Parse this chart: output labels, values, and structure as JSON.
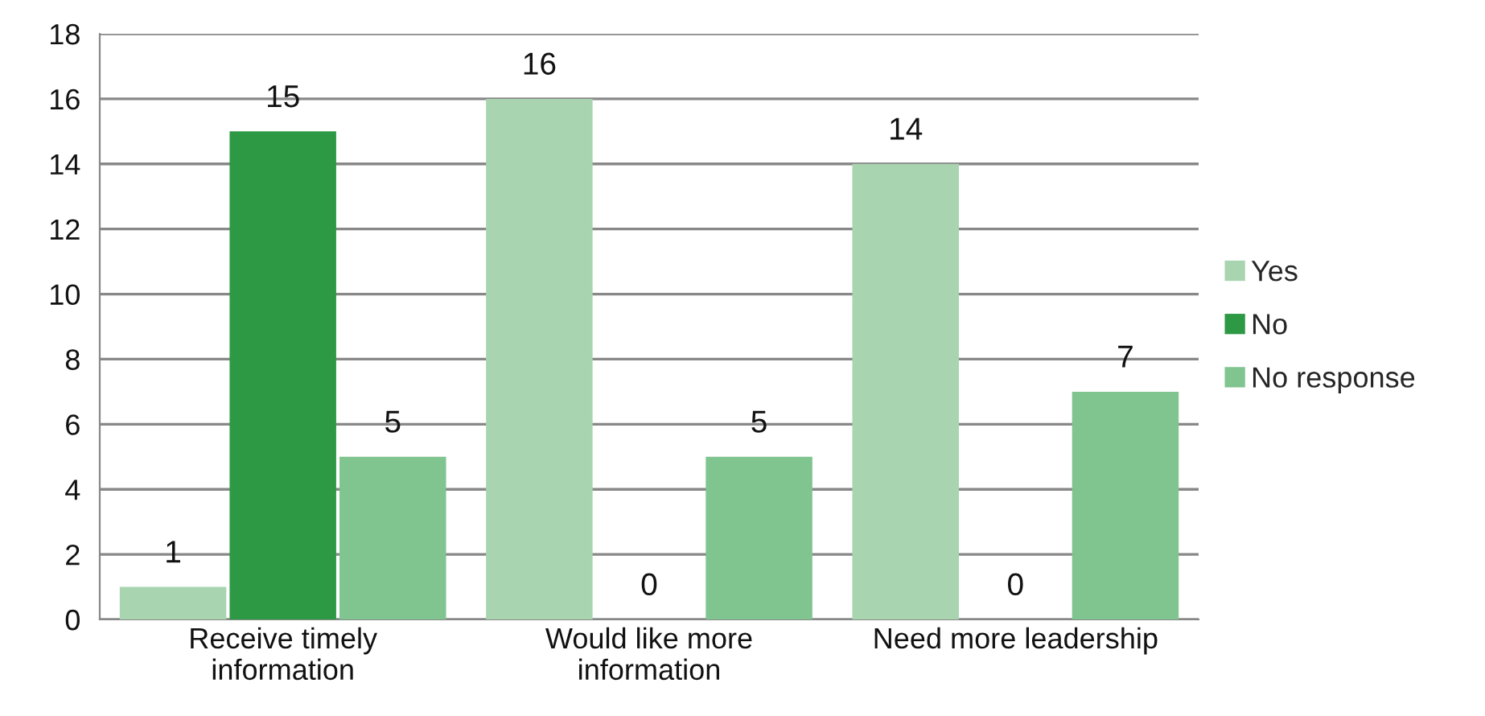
{
  "chart_data": {
    "type": "bar",
    "categories": [
      "Receive timely\ninformation",
      "Would like more\ninformation",
      "Need more leadership"
    ],
    "series": [
      {
        "name": "Yes",
        "color": "#a8d5b0",
        "values": [
          1,
          16,
          14
        ]
      },
      {
        "name": "No",
        "color": "#2e9945",
        "values": [
          15,
          0,
          0
        ]
      },
      {
        "name": "No response",
        "color": "#80c48f",
        "values": [
          5,
          5,
          7
        ]
      }
    ],
    "ylim": [
      0,
      18
    ],
    "yticks": [
      0,
      2,
      4,
      6,
      8,
      10,
      12,
      14,
      16,
      18
    ],
    "grid": "y",
    "legend": "right",
    "data_labels": true
  }
}
